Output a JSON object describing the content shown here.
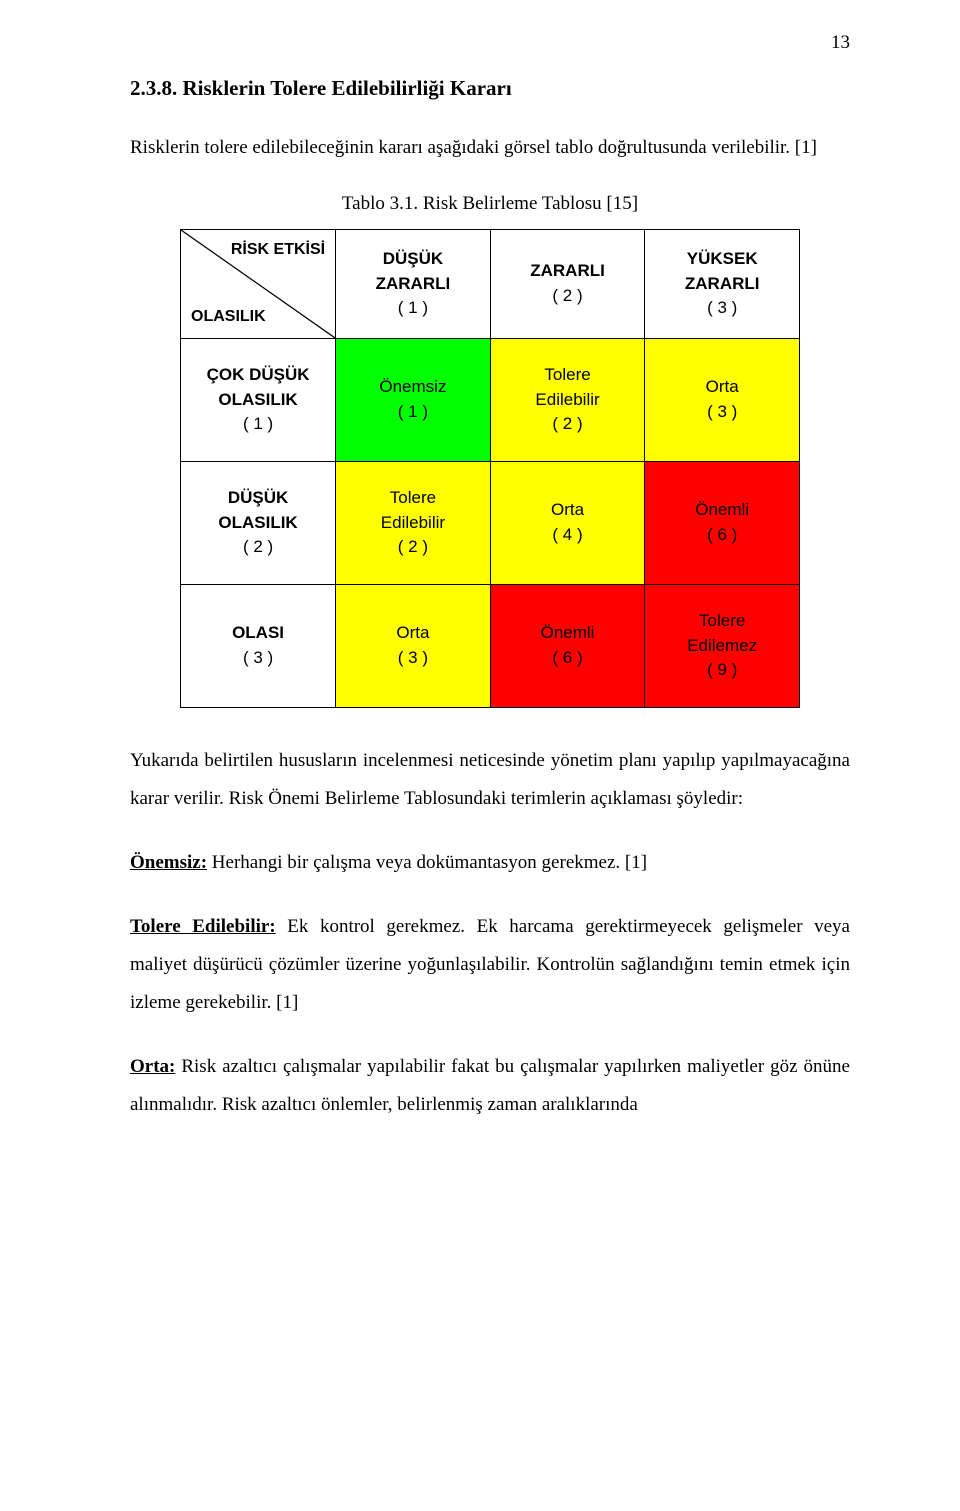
{
  "page_number": "13",
  "heading": "2.3.8. Risklerin Tolere Edilebilirliği Kararı",
  "intro": "Risklerin tolere edilebileceğinin kararı aşağıdaki görsel tablo doğrultusunda verilebilir. [1]",
  "table_caption": "Tablo 3.1. Risk Belirleme Tablosu [15]",
  "colors": {
    "green": "#00ff00",
    "yellow": "#ffff00",
    "red": "#ff0000",
    "border": "#000000",
    "white": "#ffffff"
  },
  "table": {
    "corner_top": "RİSK ETKİSİ",
    "corner_bottom": "OLASILIK",
    "col_headers": [
      {
        "top": "DÜŞÜK\nZARARLI",
        "num": "( 1 )"
      },
      {
        "top": "ZARARLI",
        "num": "( 2 )"
      },
      {
        "top": "YÜKSEK\nZARARLI",
        "num": "( 3 )"
      }
    ],
    "rows": [
      {
        "label_bold": "ÇOK DÜŞÜK\nOLASILIK",
        "label_num": "( 1 )",
        "cells": [
          {
            "text": "Önemsiz",
            "num": "( 1 )",
            "color": "green"
          },
          {
            "text": "Tolere\nEdilebilir",
            "num": "( 2 )",
            "color": "yellow"
          },
          {
            "text": "Orta",
            "num": "( 3 )",
            "color": "yellow"
          }
        ]
      },
      {
        "label_bold": "DÜŞÜK\nOLASILIK",
        "label_num": "( 2 )",
        "cells": [
          {
            "text": "Tolere\nEdilebilir",
            "num": "( 2 )",
            "color": "yellow"
          },
          {
            "text": "Orta",
            "num": "( 4 )",
            "color": "yellow"
          },
          {
            "text": "Önemli",
            "num": "( 6 )",
            "color": "red"
          }
        ]
      },
      {
        "label_bold": "OLASI",
        "label_num": "( 3 )",
        "cells": [
          {
            "text": "Orta",
            "num": "( 3 )",
            "color": "yellow"
          },
          {
            "text": "Önemli",
            "num": "( 6 )",
            "color": "red"
          },
          {
            "text": "Tolere\nEdilemez",
            "num": "( 9 )",
            "color": "red"
          }
        ]
      }
    ]
  },
  "para_summary": "Yukarıda belirtilen hususların incelenmesi neticesinde yönetim planı yapılıp yapılmayacağına karar verilir. Risk Önemi Belirleme Tablosundaki terimlerin açıklaması şöyledir:",
  "defs": {
    "onemsiz_label": "Önemsiz:",
    "onemsiz_text": " Herhangi bir çalışma veya dokümantasyon gerekmez. [1]",
    "tolere_label": "Tolere Edilebilir:",
    "tolere_text": " Ek kontrol gerekmez. Ek harcama gerektirmeyecek gelişmeler veya maliyet düşürücü çözümler üzerine yoğunlaşılabilir. Kontrolün sağlandığını temin etmek için izleme gerekebilir. [1]",
    "orta_label": "Orta:",
    "orta_text": " Risk azaltıcı çalışmalar yapılabilir fakat bu çalışmalar yapılırken maliyetler göz önüne alınmalıdır. Risk azaltıcı önlemler, belirlenmiş zaman aralıklarında"
  }
}
